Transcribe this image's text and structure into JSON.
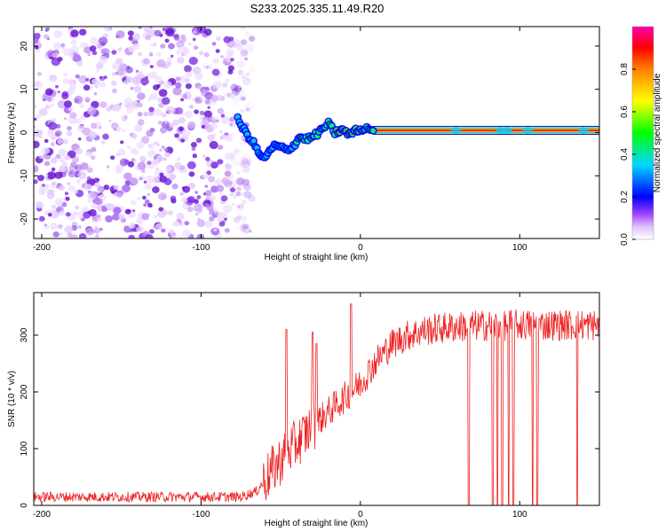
{
  "title": "S233.2025.335.11.49.R20",
  "chart_data": [
    {
      "type": "heatmap",
      "title": "S233.2025.335.11.49.R20",
      "xlabel": "Height of straight line (km)",
      "ylabel": "Frequency (Hz)",
      "xlim": [
        -205,
        150
      ],
      "ylim": [
        -24.5,
        24.5
      ],
      "xticks": [
        -200,
        -100,
        0,
        100
      ],
      "yticks": [
        -20,
        -10,
        0,
        10,
        20
      ],
      "noise_region_x": [
        -205,
        -72
      ],
      "carrier_track": {
        "x": [
          -77,
          -72,
          -66,
          -62,
          -58,
          -54,
          -50,
          -46,
          -42,
          -38,
          -34,
          -30,
          -26,
          -22,
          -20,
          -16,
          -12,
          -8,
          -4,
          0,
          4,
          8,
          150
        ],
        "freq": [
          3,
          0,
          -3,
          -6,
          -5,
          -3,
          -3.5,
          -4,
          -3,
          -1,
          -1.5,
          -1,
          0,
          1.5,
          2,
          0,
          0.5,
          0,
          0.2,
          1,
          0.8,
          0.8,
          0.5
        ]
      },
      "colorbar": {
        "label": "Normalized spectral amplitude",
        "range": [
          0,
          1
        ],
        "ticks": [
          0.0,
          0.2,
          0.4,
          0.6,
          0.8
        ],
        "colors": [
          "#ffffff",
          "#cc88ff",
          "#7700ee",
          "#0000ff",
          "#00c8ff",
          "#00ff00",
          "#ffff00",
          "#ff8000",
          "#ff0000",
          "#ff00aa"
        ]
      }
    },
    {
      "type": "line",
      "xlabel": "Height of straight line (km)",
      "ylabel": "SNR (10 * v/v)",
      "xlim": [
        -205,
        150
      ],
      "ylim": [
        0,
        375
      ],
      "xticks": [
        -200,
        -100,
        0,
        100
      ],
      "yticks": [
        0,
        100,
        200,
        300
      ],
      "series": [
        {
          "name": "SNR",
          "color": "#ee2222",
          "envelope_x": [
            -205,
            -75,
            -65,
            -60,
            -50,
            -40,
            -30,
            -20,
            -10,
            0,
            10,
            20,
            30,
            40,
            50,
            60,
            70,
            80,
            100,
            120,
            150
          ],
          "envelope_y": [
            15,
            15,
            25,
            45,
            80,
            110,
            140,
            165,
            190,
            215,
            255,
            285,
            300,
            308,
            312,
            315,
            316,
            317,
            318,
            318,
            318
          ],
          "spikes": [
            {
              "x": -46.5,
              "y": 310
            },
            {
              "x": -30,
              "y": 305
            },
            {
              "x": -27.5,
              "y": 285
            },
            {
              "x": -6,
              "y": 355
            }
          ],
          "dropouts_x": [
            68,
            83,
            86,
            89,
            93,
            96,
            108,
            111,
            136
          ]
        }
      ]
    }
  ]
}
